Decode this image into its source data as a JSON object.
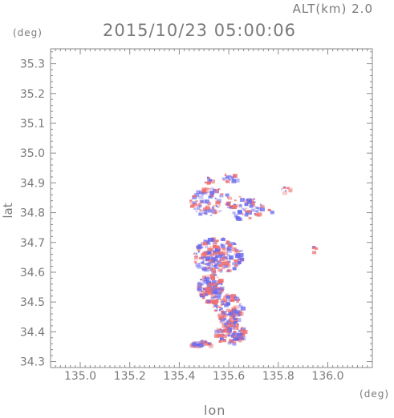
{
  "header": {
    "altitude": "ALT(km) 2.0",
    "timestamp": "2015/10/23 05:00:06"
  },
  "axes": {
    "y_unit": "(deg)",
    "x_unit": "(deg)",
    "ylabel": "lat",
    "xlabel": "lon",
    "x_ticks": [
      "135.0",
      "135.2",
      "135.4",
      "135.6",
      "135.8",
      "136.0"
    ],
    "y_ticks": [
      "35.3",
      "35.2",
      "35.1",
      "35.0",
      "34.9",
      "34.8",
      "34.7",
      "34.6",
      "34.5",
      "34.4",
      "34.3"
    ],
    "xlim": [
      134.88,
      136.18
    ],
    "ylim": [
      34.28,
      35.35
    ]
  },
  "colors": {
    "frame": "#8a8a8a",
    "positive": "#f07070",
    "negative": "#6a6af0"
  }
}
